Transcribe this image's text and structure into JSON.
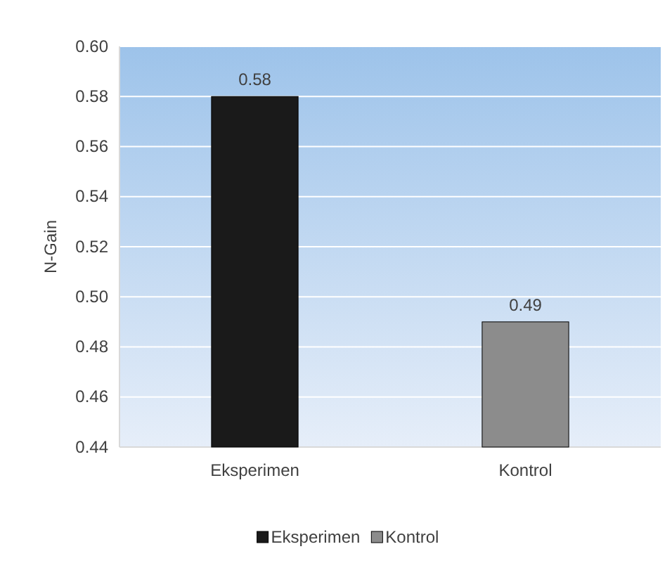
{
  "chart_data": {
    "type": "bar",
    "ylabel": "N-Gain",
    "categories": [
      "Eksperimen",
      "Kontrol"
    ],
    "series": [
      {
        "name": "Eksperimen",
        "color": "#1a1a1a",
        "values": [
          0.58,
          null
        ]
      },
      {
        "name": "Kontrol",
        "color": "#8c8c8c",
        "values": [
          null,
          0.49
        ]
      }
    ],
    "ylim": [
      0.44,
      0.6
    ],
    "yticks": [
      0.44,
      0.46,
      0.48,
      {
        "value": 0.5,
        "label": "0.50"
      },
      0.52,
      0.54,
      0.56,
      0.58,
      {
        "value": 0.6,
        "label": "0.60"
      }
    ],
    "grid": "y",
    "data_labels": true,
    "legend": "bottom"
  }
}
